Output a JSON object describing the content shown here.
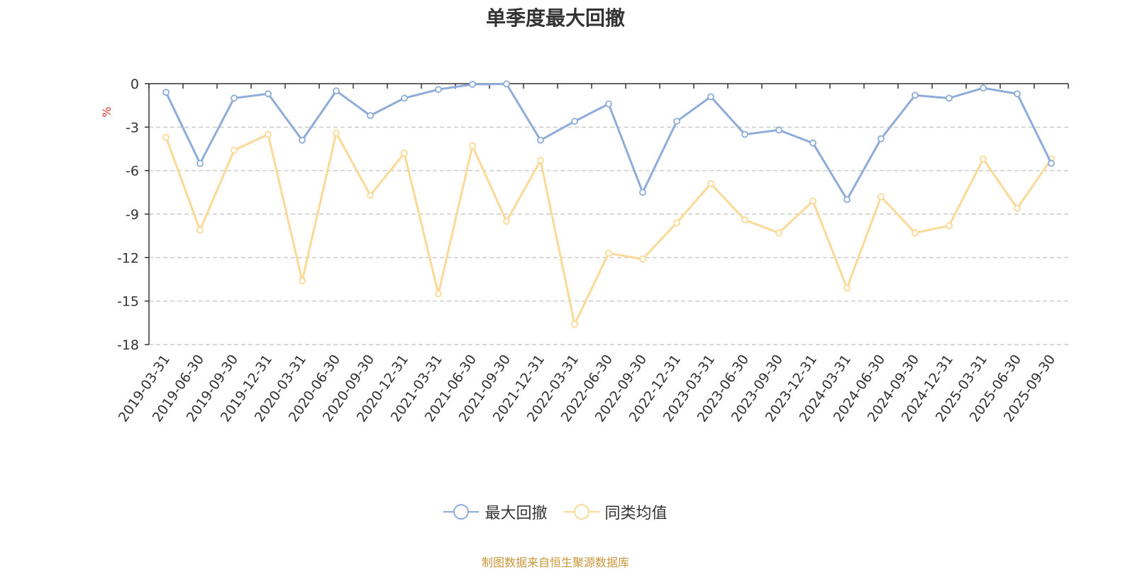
{
  "chart_data": {
    "type": "line",
    "title": "单季度最大回撤",
    "ylabel": "%",
    "ylim": [
      -18,
      0
    ],
    "yticks": [
      0,
      -3,
      -6,
      -9,
      -12,
      -15,
      -18
    ],
    "grid": "horizontal dashed",
    "legend_position": "bottom",
    "categories": [
      "2019-03-31",
      "2019-06-30",
      "2019-09-30",
      "2019-12-31",
      "2020-03-31",
      "2020-06-30",
      "2020-09-30",
      "2020-12-31",
      "2021-03-31",
      "2021-06-30",
      "2021-09-30",
      "2021-12-31",
      "2022-03-31",
      "2022-06-30",
      "2022-09-30",
      "2022-12-31",
      "2023-03-31",
      "2023-06-30",
      "2023-09-30",
      "2023-12-31",
      "2024-03-31",
      "2024-06-30",
      "2024-09-30",
      "2024-12-31",
      "2025-03-31",
      "2025-06-30",
      "2025-09-30"
    ],
    "series": [
      {
        "name": "最大回撤",
        "color": "#8eacd9",
        "values": [
          -0.6,
          -5.5,
          -1.0,
          -0.7,
          -3.9,
          -0.5,
          -2.2,
          -1.0,
          -0.4,
          -0.05,
          -0.02,
          -3.9,
          -2.6,
          -1.4,
          -7.5,
          -2.6,
          -0.9,
          -3.5,
          -3.2,
          -4.1,
          -8.0,
          -3.8,
          -0.8,
          -1.0,
          -0.3,
          -0.7,
          -5.5
        ]
      },
      {
        "name": "同类均值",
        "color": "#fcd996",
        "values": [
          -3.7,
          -10.1,
          -4.6,
          -3.5,
          -13.6,
          -3.4,
          -7.7,
          -4.8,
          -14.5,
          -4.3,
          -9.5,
          -5.3,
          -16.6,
          -11.7,
          -12.1,
          -9.6,
          -6.9,
          -9.4,
          -10.3,
          -8.1,
          -14.1,
          -7.8,
          -10.3,
          -9.8,
          -5.2,
          -8.6,
          -5.2
        ]
      }
    ]
  },
  "source_text": "制图数据来自恒生聚源数据库"
}
